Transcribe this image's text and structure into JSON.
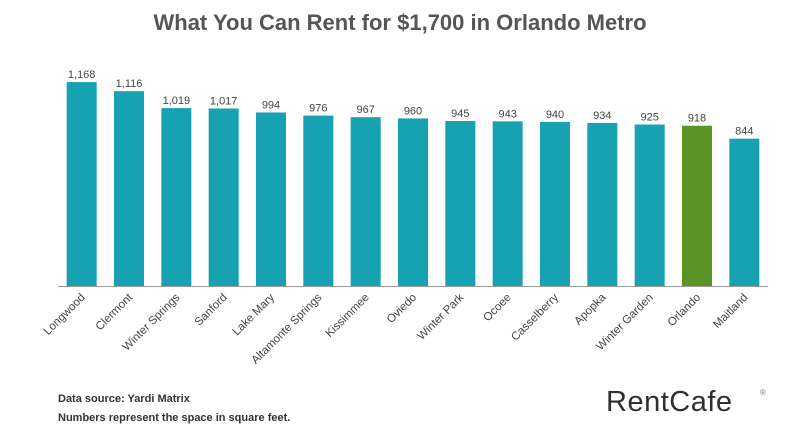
{
  "chart_data": {
    "type": "bar",
    "title": "What You Can Rent for $1,700 in Orlando Metro",
    "categories": [
      "Longwood",
      "Clermont",
      "Winter Springs",
      "Sanford",
      "Lake Mary",
      "Altamonte Springs",
      "Kissimmee",
      "Oviedo",
      "Winter Park",
      "Ocoee",
      "Casselberry",
      "Apopka",
      "Winter Garden",
      "Orlando",
      "Maitland"
    ],
    "values": [
      1168,
      1116,
      1019,
      1017,
      994,
      976,
      967,
      960,
      945,
      943,
      940,
      934,
      925,
      918,
      844
    ],
    "value_labels": [
      "1,168",
      "1,116",
      "1,019",
      "1,017",
      "994",
      "976",
      "967",
      "960",
      "945",
      "943",
      "940",
      "934",
      "925",
      "918",
      "844"
    ],
    "highlight_category": "Orlando",
    "colors": {
      "bar": "#17a2b2",
      "highlight": "#5c9327",
      "axis": "#9a9a9a",
      "label": "#444444"
    },
    "xlabel": "",
    "ylabel": "",
    "ylim": [
      0,
      1180
    ],
    "grid": false,
    "legend": "none"
  },
  "footer": {
    "source": "Data source: Yardi Matrix",
    "note": "Numbers represent the space in square feet."
  },
  "brand": {
    "name": "RentCafe",
    "mark": "®"
  }
}
